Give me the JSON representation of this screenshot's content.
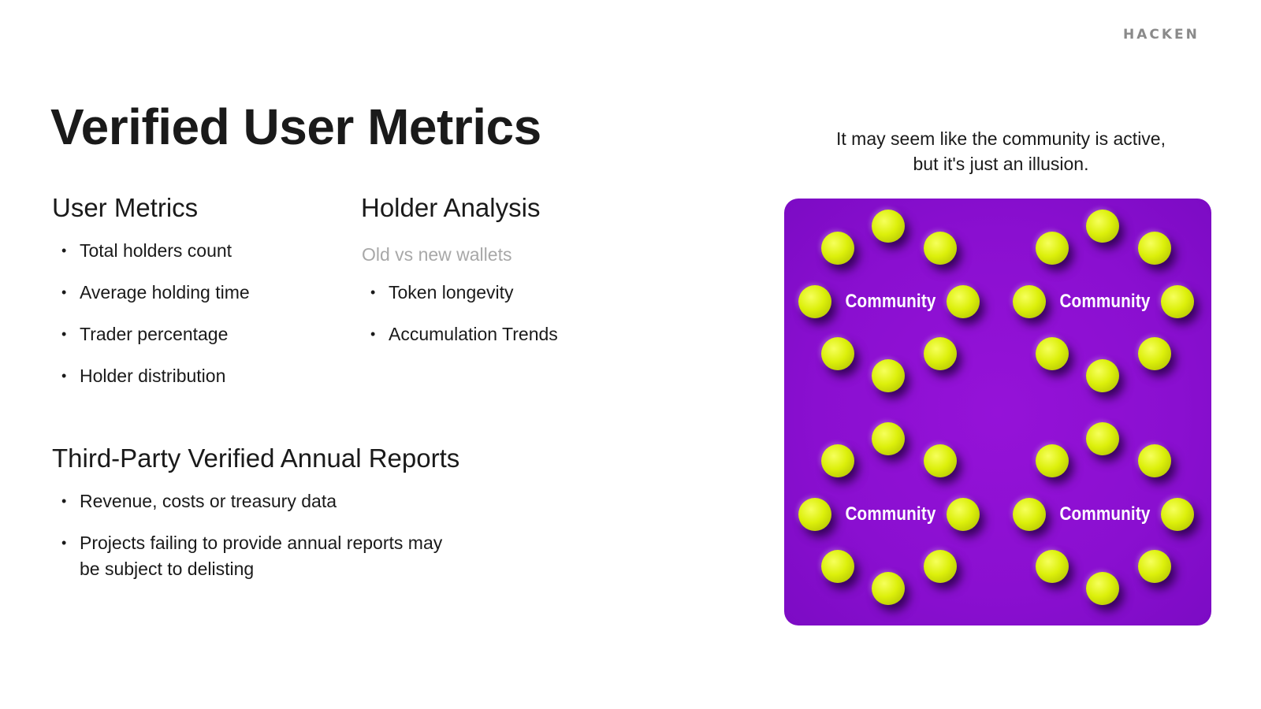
{
  "brand": {
    "logo_text": "HACKEN"
  },
  "title": "Verified User Metrics",
  "user_metrics": {
    "heading": "User Metrics",
    "items": [
      "Total holders count",
      "Average holding time",
      "Trader percentage",
      "Holder distribution"
    ]
  },
  "holder_analysis": {
    "heading": "Holder Analysis",
    "subheading": "Old vs new wallets",
    "items": [
      "Token longevity",
      "Accumulation Trends"
    ]
  },
  "annual_reports": {
    "heading": "Third-Party Verified Annual Reports",
    "items": [
      "Revenue, costs or treasury data",
      "Projects failing to provide annual reports may be subject to delisting"
    ]
  },
  "illusion": {
    "caption_line1": "It may seem like the community is active,",
    "caption_line2": "but it's just an illusion.",
    "labels": [
      "Community",
      "Community",
      "Community",
      "Community"
    ],
    "background_color": "#8a0fd0",
    "ball_color": "#dcf00b"
  }
}
